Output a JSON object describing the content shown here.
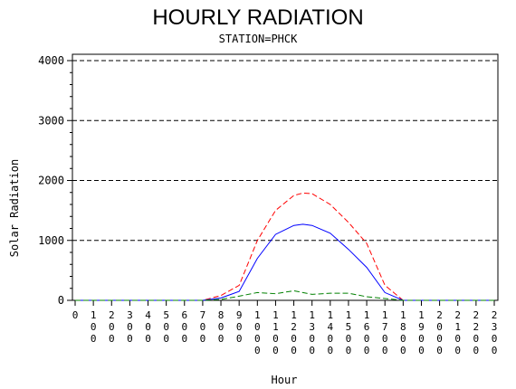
{
  "chart_data": {
    "type": "line",
    "title": "HOURLY RADIATION",
    "subtitle": "STATION=PHCK",
    "xlabel": "Hour",
    "ylabel": "Solar Radiation",
    "x": [
      0,
      100,
      200,
      300,
      400,
      500,
      600,
      700,
      800,
      900,
      1000,
      1100,
      1200,
      1300,
      1400,
      1500,
      1600,
      1700,
      1800,
      1900,
      2000,
      2100,
      2200,
      2300
    ],
    "xlim": [
      0,
      2300
    ],
    "ylim": [
      0,
      4000
    ],
    "yticks": [
      0,
      1000,
      2000,
      3000,
      4000
    ],
    "xtick_labels": [
      "0",
      "100",
      "200",
      "300",
      "400",
      "500",
      "600",
      "700",
      "800",
      "900",
      "1000",
      "1100",
      "1200",
      "1300",
      "1400",
      "1500",
      "1600",
      "1700",
      "1800",
      "1900",
      "2000",
      "2100",
      "2200",
      "2300"
    ],
    "grid": "horizontal-dashed",
    "series": [
      {
        "color": "#ff0000",
        "style": "dashed",
        "points": [
          [
            0,
            0
          ],
          [
            700,
            0
          ],
          [
            800,
            80
          ],
          [
            900,
            250
          ],
          [
            1000,
            1000
          ],
          [
            1100,
            1500
          ],
          [
            1200,
            1750
          ],
          [
            1250,
            1790
          ],
          [
            1300,
            1780
          ],
          [
            1400,
            1600
          ],
          [
            1500,
            1300
          ],
          [
            1600,
            950
          ],
          [
            1700,
            250
          ],
          [
            1800,
            0
          ],
          [
            2300,
            0
          ]
        ]
      },
      {
        "color": "#0000ff",
        "style": "solid",
        "points": [
          [
            0,
            0
          ],
          [
            700,
            0
          ],
          [
            800,
            40
          ],
          [
            900,
            150
          ],
          [
            1000,
            700
          ],
          [
            1100,
            1100
          ],
          [
            1200,
            1250
          ],
          [
            1250,
            1270
          ],
          [
            1300,
            1250
          ],
          [
            1400,
            1120
          ],
          [
            1500,
            850
          ],
          [
            1600,
            550
          ],
          [
            1700,
            130
          ],
          [
            1800,
            0
          ],
          [
            2300,
            0
          ]
        ]
      },
      {
        "color": "#008000",
        "style": "dashed",
        "points": [
          [
            0,
            0
          ],
          [
            700,
            0
          ],
          [
            800,
            15
          ],
          [
            900,
            70
          ],
          [
            1000,
            130
          ],
          [
            1100,
            110
          ],
          [
            1200,
            160
          ],
          [
            1300,
            100
          ],
          [
            1400,
            120
          ],
          [
            1500,
            120
          ],
          [
            1600,
            60
          ],
          [
            1700,
            30
          ],
          [
            1800,
            0
          ],
          [
            2300,
            0
          ]
        ]
      }
    ]
  }
}
